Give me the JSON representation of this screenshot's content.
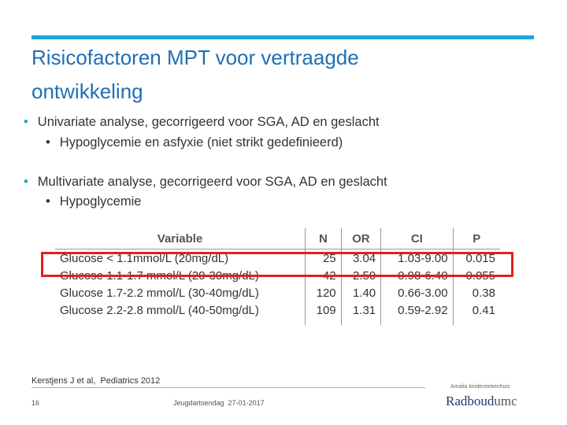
{
  "header": {
    "title_lines": [
      "Risicofactoren MPT voor vertraagde",
      "ontwikkeling"
    ]
  },
  "bullets": [
    {
      "text": "Univariate analyse, gecorrigeerd voor SGA, AD en geslacht",
      "sub": [
        "Hypoglycemie en asfyxie (niet strikt gedefinieerd)"
      ]
    },
    {
      "text": "Multivariate analyse, gecorrigeerd voor SGA, AD en geslacht",
      "sub": [
        "Hypoglycemie"
      ]
    }
  ],
  "table": {
    "header": [
      "Variable",
      "N",
      "OR",
      "CI",
      "P"
    ],
    "rows": [
      [
        "Glucose < 1.1mmol/L    (20mg/dL)",
        "25",
        "3.04",
        "1.03-9.00",
        "0.015"
      ],
      [
        "Glucose 1.1-1.7 mmol/L (20-30mg/dL)",
        "42",
        "2.50",
        "0.98-6.40",
        "0.055"
      ],
      [
        "Glucose 1.7-2.2 mmol/L (30-40mg/dL)",
        "120",
        "1.40",
        "0.66-3.00",
        "0.38"
      ],
      [
        "Glucose 2.2-2.8 mmol/L (40-50mg/dL)",
        "109",
        "1.31",
        "0.59-2.92",
        "0.41"
      ]
    ]
  },
  "footer": {
    "citation": "Kerstjens J et al,  Pediatrics 2012",
    "page": "16",
    "event": "Jeugdartsendag  27-01-2017",
    "hospital": "Amalia kinderziekenhuis",
    "logo_main": "Radboud",
    "logo_suffix": "umc"
  }
}
